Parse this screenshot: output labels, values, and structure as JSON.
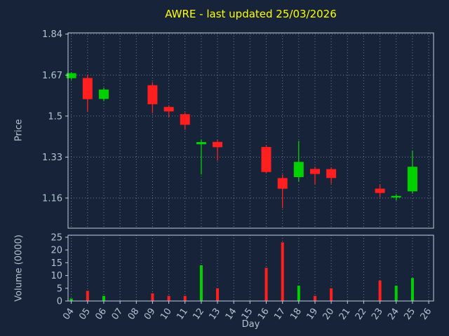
{
  "title": "AWRE - last updated 25/03/2026",
  "colors": {
    "background": "#162338",
    "plot_background": "#162338",
    "grid": "#93a7bc",
    "frame": "#c3cfdc",
    "tick_text": "#b4c3d4",
    "title": "#ffff00",
    "up": "#00d200",
    "down": "#ff1f1f"
  },
  "chart_data": [
    {
      "type": "candlestick",
      "title": "AWRE - last updated 25/03/2026",
      "xlabel": "Day",
      "ylabel": "Price",
      "grid": true,
      "xlim": [
        3.8,
        26.3
      ],
      "ylim": [
        1.035,
        1.845
      ],
      "yticks": [
        1.16,
        1.33,
        1.5,
        1.67,
        1.84
      ],
      "ytick_labels": [
        "1.16",
        "1.33",
        "1.5",
        "1.67",
        "1.84"
      ],
      "xticks": [
        4,
        5,
        6,
        7,
        8,
        9,
        10,
        11,
        12,
        13,
        14,
        15,
        16,
        17,
        18,
        19,
        20,
        21,
        22,
        23,
        24,
        25,
        26
      ],
      "xtick_labels": [
        "04",
        "05",
        "06",
        "07",
        "08",
        "09",
        "10",
        "11",
        "12",
        "13",
        "14",
        "15",
        "16",
        "17",
        "18",
        "19",
        "20",
        "21",
        "22",
        "23",
        "24",
        "25",
        "26"
      ],
      "candles": [
        {
          "day": 4,
          "open": 1.657,
          "high": 1.682,
          "low": 1.65,
          "close": 1.678
        },
        {
          "day": 5,
          "open": 1.658,
          "high": 1.672,
          "low": 1.52,
          "close": 1.57
        },
        {
          "day": 6,
          "open": 1.571,
          "high": 1.618,
          "low": 1.562,
          "close": 1.61
        },
        {
          "day": 9,
          "open": 1.628,
          "high": 1.64,
          "low": 1.512,
          "close": 1.549
        },
        {
          "day": 10,
          "open": 1.538,
          "high": 1.545,
          "low": 1.496,
          "close": 1.519
        },
        {
          "day": 11,
          "open": 1.508,
          "high": 1.515,
          "low": 1.443,
          "close": 1.464
        },
        {
          "day": 12,
          "open": 1.383,
          "high": 1.402,
          "low": 1.258,
          "close": 1.392
        },
        {
          "day": 13,
          "open": 1.393,
          "high": 1.402,
          "low": 1.315,
          "close": 1.371
        },
        {
          "day": 16,
          "open": 1.372,
          "high": 1.38,
          "low": 1.262,
          "close": 1.268
        },
        {
          "day": 17,
          "open": 1.243,
          "high": 1.258,
          "low": 1.118,
          "close": 1.199
        },
        {
          "day": 18,
          "open": 1.247,
          "high": 1.397,
          "low": 1.228,
          "close": 1.31
        },
        {
          "day": 19,
          "open": 1.281,
          "high": 1.29,
          "low": 1.217,
          "close": 1.26
        },
        {
          "day": 20,
          "open": 1.28,
          "high": 1.288,
          "low": 1.22,
          "close": 1.243
        },
        {
          "day": 23,
          "open": 1.199,
          "high": 1.218,
          "low": 1.163,
          "close": 1.181
        },
        {
          "day": 24,
          "open": 1.162,
          "high": 1.176,
          "low": 1.15,
          "close": 1.169
        },
        {
          "day": 25,
          "open": 1.188,
          "high": 1.357,
          "low": 1.178,
          "close": 1.29
        }
      ]
    },
    {
      "type": "bar",
      "ylabel": "Volume (0000)",
      "ylim": [
        0,
        25.8
      ],
      "yticks": [
        0,
        5,
        10,
        15,
        20,
        25
      ],
      "ytick_labels": [
        "0",
        "5",
        "10",
        "15",
        "20",
        "25"
      ],
      "bars": [
        {
          "day": 4,
          "value": 1
        },
        {
          "day": 5,
          "value": 4
        },
        {
          "day": 6,
          "value": 2
        },
        {
          "day": 9,
          "value": 3
        },
        {
          "day": 10,
          "value": 2
        },
        {
          "day": 11,
          "value": 2
        },
        {
          "day": 12,
          "value": 14
        },
        {
          "day": 13,
          "value": 5
        },
        {
          "day": 16,
          "value": 13
        },
        {
          "day": 17,
          "value": 23
        },
        {
          "day": 18,
          "value": 6
        },
        {
          "day": 19,
          "value": 2
        },
        {
          "day": 20,
          "value": 5
        },
        {
          "day": 23,
          "value": 8
        },
        {
          "day": 24,
          "value": 6
        },
        {
          "day": 25,
          "value": 9
        }
      ]
    }
  ]
}
